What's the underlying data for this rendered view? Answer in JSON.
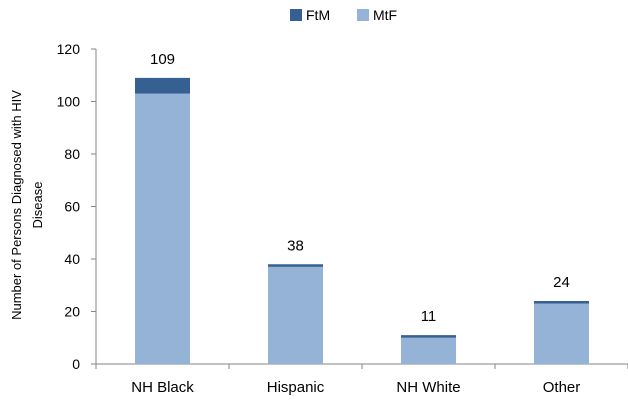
{
  "chart_data": {
    "type": "bar",
    "stacked": true,
    "categories": [
      "NH Black",
      "Hispanic",
      "NH White",
      "Other"
    ],
    "series": [
      {
        "name": "MtF",
        "values": [
          103,
          37,
          10,
          23
        ],
        "color": "#95b3d7"
      },
      {
        "name": "FtM",
        "values": [
          6,
          1,
          1,
          1
        ],
        "color": "#376092"
      }
    ],
    "totals": [
      "109",
      "38",
      "11",
      "24"
    ],
    "ylabel": "Number of Persons Diagnosed with HIV Disease",
    "ylim": [
      0,
      120
    ],
    "yticks": [
      "0",
      "20",
      "40",
      "60",
      "80",
      "100",
      "120"
    ],
    "legend": {
      "position": "top",
      "entries": [
        "FtM",
        "MtF"
      ]
    },
    "grid": false,
    "axis_color": "#868686"
  }
}
